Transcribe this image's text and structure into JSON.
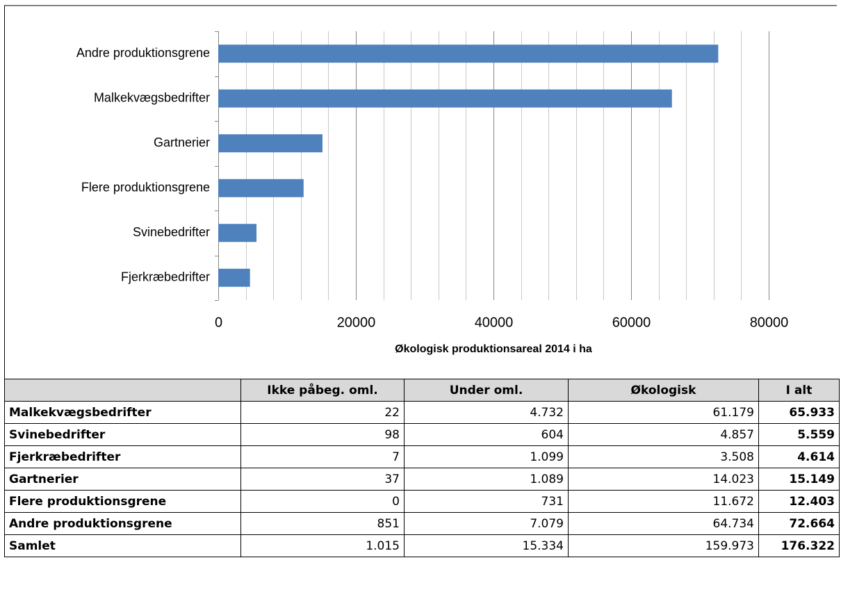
{
  "chart_data": {
    "type": "bar",
    "orientation": "horizontal",
    "categories": [
      "Andre produktionsgrene",
      "Malkekvægsbedrifter",
      "Gartnerier",
      "Flere produktionsgrene",
      "Svinebedrifter",
      "Fjerkræbedrifter"
    ],
    "values": [
      72664,
      65933,
      15149,
      12403,
      5559,
      4614
    ],
    "color": "#4f81bd",
    "xlim": [
      0,
      80000
    ],
    "xticks": [
      0,
      20000,
      40000,
      60000,
      80000
    ],
    "x_minor_ticks": [
      4000,
      8000,
      12000,
      16000,
      24000,
      28000,
      32000,
      36000,
      44000,
      48000,
      52000,
      56000,
      64000,
      68000,
      72000,
      76000
    ],
    "grid": true,
    "xlabel": "Økologisk produktionsareal 2014 i ha"
  },
  "table": {
    "header": [
      "Ikke påbeg. oml.",
      "Under oml.",
      "Økologisk",
      "I alt"
    ],
    "rows": [
      [
        "Malkekvægsbedrifter",
        "22",
        "4.732",
        "61.179",
        "65.933"
      ],
      [
        "Svinebedrifter",
        "98",
        "604",
        "4.857",
        "5.559"
      ],
      [
        "Fjerkræbedrifter",
        "7",
        "1.099",
        "3.508",
        "4.614"
      ],
      [
        "Gartnerier",
        "37",
        "1.089",
        "14.023",
        "15.149"
      ],
      [
        "Flere produktionsgrene",
        "0",
        "731",
        "11.672",
        "12.403"
      ],
      [
        "Andre produktionsgrene",
        "851",
        "7.079",
        "64.734",
        "72.664"
      ],
      [
        "Samlet",
        "1.015",
        "15.334",
        "159.973",
        "176.322"
      ]
    ]
  }
}
